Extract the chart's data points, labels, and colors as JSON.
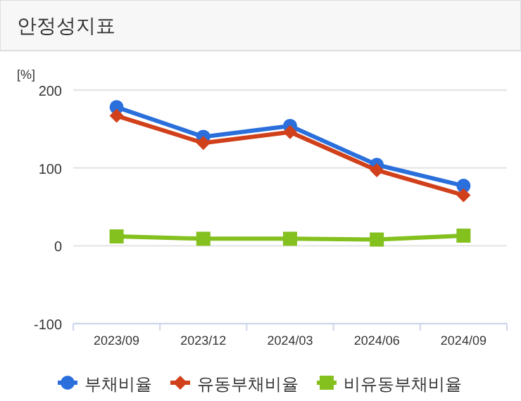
{
  "chart_data": {
    "type": "line",
    "title": "안정성지표",
    "ylabel": "[%]",
    "categories": [
      "2023/09",
      "2023/12",
      "2024/03",
      "2024/06",
      "2024/09"
    ],
    "series": [
      {
        "name": "부채비율",
        "color": "#2a6fdb",
        "marker": "circle",
        "values": [
          178,
          140,
          154,
          104,
          77
        ]
      },
      {
        "name": "유동부채비율",
        "color": "#d0401a",
        "marker": "diamond",
        "values": [
          167,
          132,
          146,
          97,
          65
        ]
      },
      {
        "name": "비유동부채비율",
        "color": "#84c01e",
        "marker": "square",
        "values": [
          12,
          9,
          9,
          8,
          13
        ]
      }
    ],
    "ylim": [
      -100,
      200
    ],
    "yticks": [
      -100,
      0,
      100,
      200
    ],
    "grid": "y",
    "legend": "bottom",
    "line_style": "solid"
  }
}
